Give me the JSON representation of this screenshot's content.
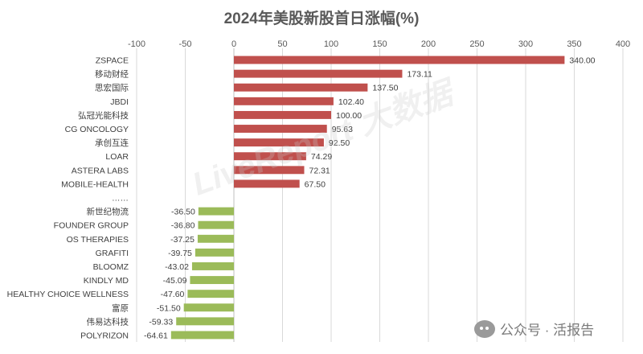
{
  "chart_data": {
    "type": "bar",
    "orientation": "horizontal",
    "title": "2024年美股新股首日涨幅(%)",
    "xlim": [
      -100,
      400
    ],
    "xticks": [
      -100,
      -50,
      0,
      50,
      100,
      150,
      200,
      250,
      300,
      350,
      400
    ],
    "grid": true,
    "colors": {
      "positive": "#C0504D",
      "negative": "#9BBB59"
    },
    "categories": [
      "ZSPACE",
      "移动财经",
      "思宏国际",
      "JBDI",
      "弘冠光能科技",
      "CG ONCOLOGY",
      "承创互连",
      "LOAR",
      "ASTERA LABS",
      "MOBILE-HEALTH",
      "……",
      "新世纪物流",
      "FOUNDER GROUP",
      "OS THERAPIES",
      "GRAFITI",
      "BLOOMZ",
      "KINDLY MD",
      "HEALTHY CHOICE WELLNESS",
      "富原",
      "伟易达科技",
      "POLYRIZON"
    ],
    "values": [
      340.0,
      173.11,
      137.5,
      102.4,
      100.0,
      95.63,
      92.5,
      74.29,
      72.31,
      67.5,
      null,
      -36.5,
      -36.8,
      -37.25,
      -39.75,
      -43.02,
      -45.09,
      -47.6,
      -51.5,
      -59.33,
      -64.61
    ],
    "value_labels": [
      "340.00",
      "173.11",
      "137.50",
      "102.40",
      "100.00",
      "95.63",
      "92.50",
      "74.29",
      "72.31",
      "67.50",
      "",
      "-36.50",
      "-36.80",
      "-37.25",
      "-39.75",
      "-43.02",
      "-45.09",
      "-47.60",
      "-51.50",
      "-59.33",
      "-64.61"
    ]
  },
  "watermark": "LiveReport 大数据",
  "footer": {
    "logo_icon": "wechat-icon",
    "text": "公众号 · 活报告"
  }
}
